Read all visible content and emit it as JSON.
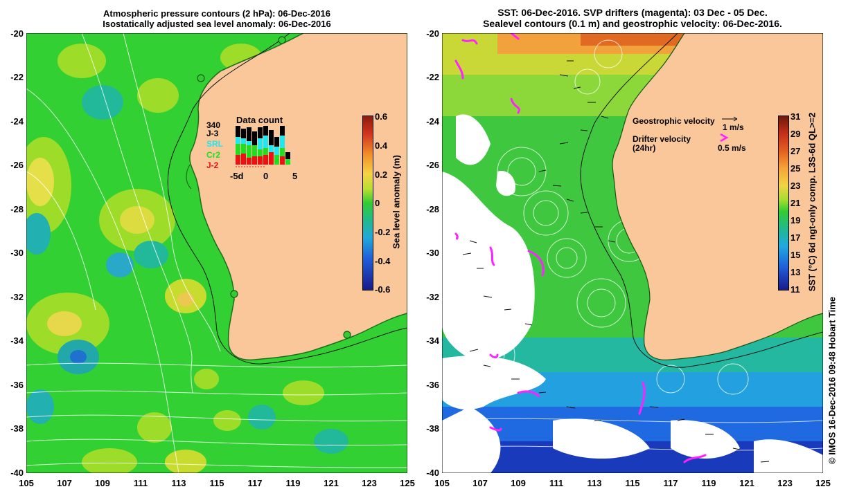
{
  "left_panel": {
    "title_line1": "Atmospheric pressure contours (2 hPa): 06-Dec-2016",
    "title_line2": "Isostatically adjusted sea level anomaly: 06-Dec-2016",
    "y_ticks": [
      "-20",
      "-22",
      "-24",
      "-26",
      "-28",
      "-30",
      "-32",
      "-34",
      "-36",
      "-38",
      "-40"
    ],
    "x_ticks": [
      "105",
      "107",
      "109",
      "111",
      "113",
      "115",
      "117",
      "119",
      "121",
      "123",
      "125"
    ],
    "colorbar": {
      "label": "Sea level anomaly (m)",
      "ticks": [
        "0.6",
        "0.4",
        "0.2",
        "0",
        "-0.2",
        "-0.4",
        "-0.6"
      ],
      "range": [
        -0.6,
        0.6
      ]
    },
    "data_count": {
      "title": "Data count",
      "top_value": "340",
      "series": [
        {
          "name": "J-3",
          "color": "#000000"
        },
        {
          "name": "SRL",
          "color": "#22e6f0"
        },
        {
          "name": "Cr2",
          "color": "#22dd22"
        },
        {
          "name": "J-2",
          "color": "#ee1111"
        }
      ],
      "x_ticks": [
        "-5d",
        "0",
        "5"
      ]
    },
    "colors": {
      "land": "#f9c79a",
      "ocean_base": "#33d033"
    }
  },
  "right_panel": {
    "title_line1": "SST: 06-Dec-2016. SVP drifters (magenta): 03 Dec - 05 Dec.",
    "title_line2": "Sealevel contours (0.1 m) and geostrophic velocity: 06-Dec-2016.",
    "y_ticks": [
      "-20",
      "-22",
      "-24",
      "-26",
      "-28",
      "-30",
      "-32",
      "-34",
      "-36",
      "-38",
      "-40"
    ],
    "x_ticks": [
      "105",
      "107",
      "109",
      "111",
      "113",
      "115",
      "117",
      "119",
      "121",
      "123",
      "125"
    ],
    "legend": {
      "geo_label": "Geostrophic velocity",
      "geo_scale": "1 m/s",
      "drifter_label_1": "Drifter velocity",
      "drifter_label_2": "(24hr)",
      "drifter_scale": "0.5 m/s"
    },
    "colorbar": {
      "label": "SST (°C) 6d ngt-only comp. L3S-6d QL>=2",
      "ticks": [
        "31",
        "29",
        "27",
        "25",
        "23",
        "21",
        "19",
        "17",
        "15",
        "13",
        "11"
      ],
      "range": [
        11,
        31
      ]
    },
    "colors": {
      "land": "#f9c79a",
      "drifter": "#ff22ff"
    }
  },
  "footer": {
    "credit": "© IMOS 16-Dec-2016 09:48 Hobart Time"
  }
}
